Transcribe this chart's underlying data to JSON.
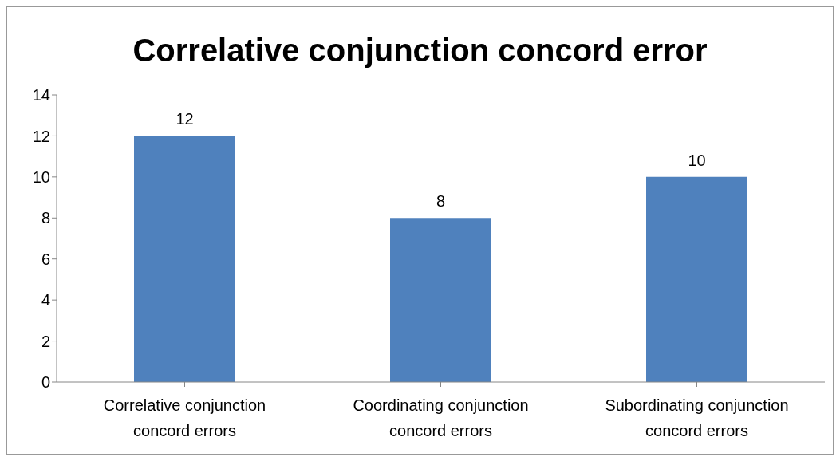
{
  "chart_data": {
    "type": "bar",
    "title": "Correlative conjunction concord error",
    "categories": [
      "Correlative conjunction concord errors",
      "Coordinating conjunction concord errors",
      "Subordinating conjunction concord errors"
    ],
    "values": [
      12,
      8,
      10
    ],
    "color": "#4f81bd",
    "ylim": [
      0,
      14
    ],
    "yticks": [
      0,
      2,
      4,
      6,
      8,
      10,
      12,
      14
    ],
    "grid": false,
    "data_labels": true,
    "legend": false
  }
}
